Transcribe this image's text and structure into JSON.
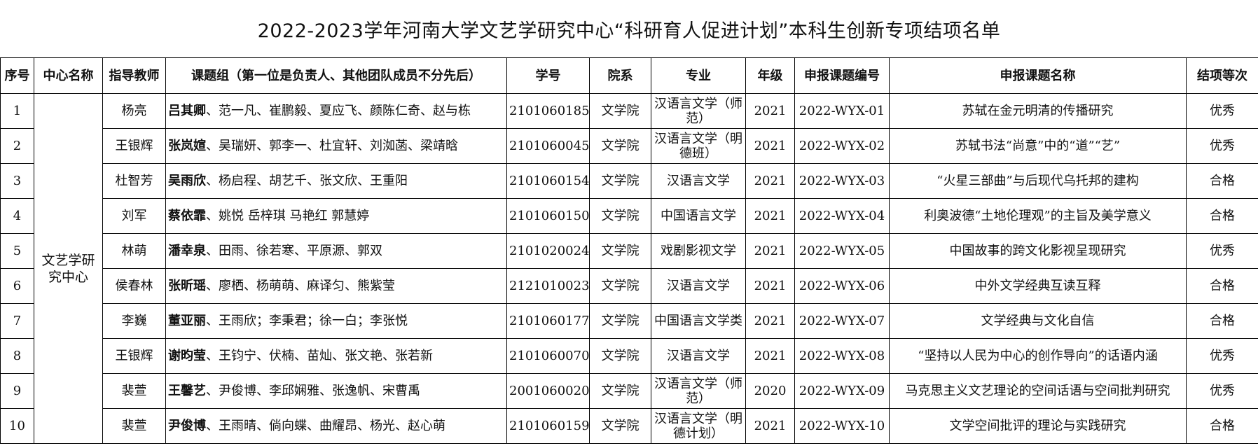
{
  "title": "2022-2023学年河南大学文艺学研究中心“科研育人促进计划”本科生创新专项结项名单",
  "headers": {
    "no": "序号",
    "center": "中心名称",
    "advisor": "指导教师",
    "group": "课题组（第一位是负责人、其他团队成员不分先后）",
    "student_id": "学号",
    "college": "院系",
    "major": "专业",
    "grade": "年级",
    "code": "申报课题编号",
    "topic": "申报课题名称",
    "result": "结项等次"
  },
  "center_name": "文艺学研究中心",
  "rows": [
    {
      "no": "1",
      "advisor": "杨亮",
      "leader": "吕其卿",
      "members": "、范一凡、崔鹏毅、夏应飞、颜陈仁奇、赵与栋",
      "student_id": "2101060185",
      "college": "文学院",
      "major": "汉语言文学（师范）",
      "grade": "2021",
      "code": "2022-WYX-01",
      "topic": "苏轼在金元明清的传播研究",
      "result": "优秀"
    },
    {
      "no": "2",
      "advisor": "王银辉",
      "leader": "张岚媗",
      "members": "、吴瑞妍、郭李一、杜宜轩、刘洳菡、梁靖晗",
      "student_id": "2101060045",
      "college": "文学院",
      "major": "汉语言文学（明德班）",
      "grade": "2021",
      "code": "2022-WYX-02",
      "topic": "苏轼书法“尚意”中的“道”“艺”",
      "result": "优秀"
    },
    {
      "no": "3",
      "advisor": "杜智芳",
      "leader": "吴雨欣",
      "members": "、杨启程、胡艺千、张文欣、王重阳",
      "student_id": "2101060154",
      "college": "文学院",
      "major": "汉语言文学",
      "grade": "2021",
      "code": "2022-WYX-03",
      "topic": "“火星三部曲”与后现代乌托邦的建构",
      "result": "合格"
    },
    {
      "no": "4",
      "advisor": "刘军",
      "leader": "蔡依霏",
      "members": "、姚悦 岳梓琪 马艳红 郭慧婷",
      "student_id": "2101060150",
      "college": "文学院",
      "major": "中国语言文学",
      "grade": "2021",
      "code": "2022-WYX-04",
      "topic": "利奥波德“土地伦理观”的主旨及美学意义",
      "result": "合格"
    },
    {
      "no": "5",
      "advisor": "林萌",
      "leader": "潘幸泉",
      "members": "、田雨、徐若寒、平原源、郭双",
      "student_id": "2101020024",
      "college": "文学院",
      "major": "戏剧影视文学",
      "grade": "2021",
      "code": "2022-WYX-05",
      "topic": "中国故事的跨文化影视呈现研究",
      "result": "优秀"
    },
    {
      "no": "6",
      "advisor": "侯春林",
      "leader": "张昕瑶",
      "members": "、廖栖、杨萌萌、麻译匀、熊紫莹",
      "student_id": "2121010023",
      "college": "文学院",
      "major": "汉语言文学",
      "grade": "2021",
      "code": "2022-WYX-06",
      "topic": "中外文学经典互读互释",
      "result": "合格"
    },
    {
      "no": "7",
      "advisor": "李巍",
      "leader": "董亚丽",
      "members": "、王雨欣；李秉君；徐一白；李张悦",
      "student_id": "2101060177",
      "college": "文学院",
      "major": "中国语言文学类",
      "grade": "2021",
      "code": "2022-WYX-07",
      "topic": "文学经典与文化自信",
      "result": "合格"
    },
    {
      "no": "8",
      "advisor": "王银辉",
      "leader": "谢昀莹",
      "members": "、王钧宁、伏楠、苗灿、张文艳、张若新",
      "student_id": "2101060070",
      "college": "文学院",
      "major": "汉语言文学",
      "grade": "2021",
      "code": "2022-WYX-08",
      "topic": "“坚持以人民为中心的创作导向”的话语内涵",
      "result": "优秀"
    },
    {
      "no": "9",
      "advisor": "裴萱",
      "leader": "王馨艺",
      "members": "、尹俊博、李邱娴雅、张逸帆、宋曹禹",
      "student_id": "2001060020",
      "college": "文学院",
      "major": "汉语言文学（师范）",
      "grade": "2020",
      "code": "2022-WYX-09",
      "topic": "马克思主义文艺理论的空间话语与空间批判研究",
      "result": "优秀"
    },
    {
      "no": "10",
      "advisor": "裴萱",
      "leader": "尹俊博",
      "members": "、王雨晴、倘向蝶、曲耀昂、杨光、赵心萌",
      "student_id": "2101060159",
      "college": "文学院",
      "major": "汉语言文学（明德计划）",
      "grade": "2021",
      "code": "2022-WYX-10",
      "topic": "文学空间批评的理论与实践研究",
      "result": "合格"
    }
  ]
}
